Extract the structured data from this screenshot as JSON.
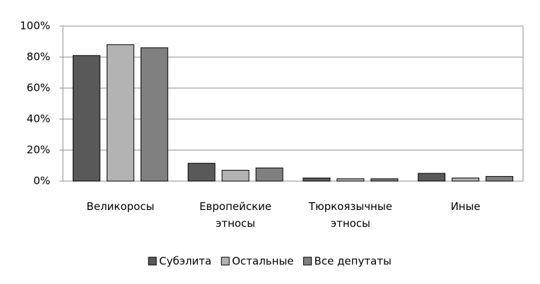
{
  "chart_data": {
    "type": "bar",
    "categories": [
      "Великоросы",
      "Европейские\nэтносы",
      "Тюркоязычные\nэтносы",
      "Иные"
    ],
    "series": [
      {
        "name": "Субэлита",
        "color": "#595959",
        "values": [
          81,
          11.5,
          2,
          5
        ]
      },
      {
        "name": "Остальные",
        "color": "#b3b3b3",
        "values": [
          88,
          7,
          1.5,
          2
        ]
      },
      {
        "name": "Все депутаты",
        "color": "#808080",
        "values": [
          86,
          8.5,
          1.5,
          3
        ]
      }
    ],
    "ylim": [
      0,
      100
    ],
    "yticks": [
      {
        "value": 0,
        "label": "0%"
      },
      {
        "value": 20,
        "label": "20%"
      },
      {
        "value": 40,
        "label": "40%"
      },
      {
        "value": 60,
        "label": "60%"
      },
      {
        "value": 80,
        "label": "80%"
      },
      {
        "value": 100,
        "label": "100%"
      }
    ],
    "grid": true
  }
}
